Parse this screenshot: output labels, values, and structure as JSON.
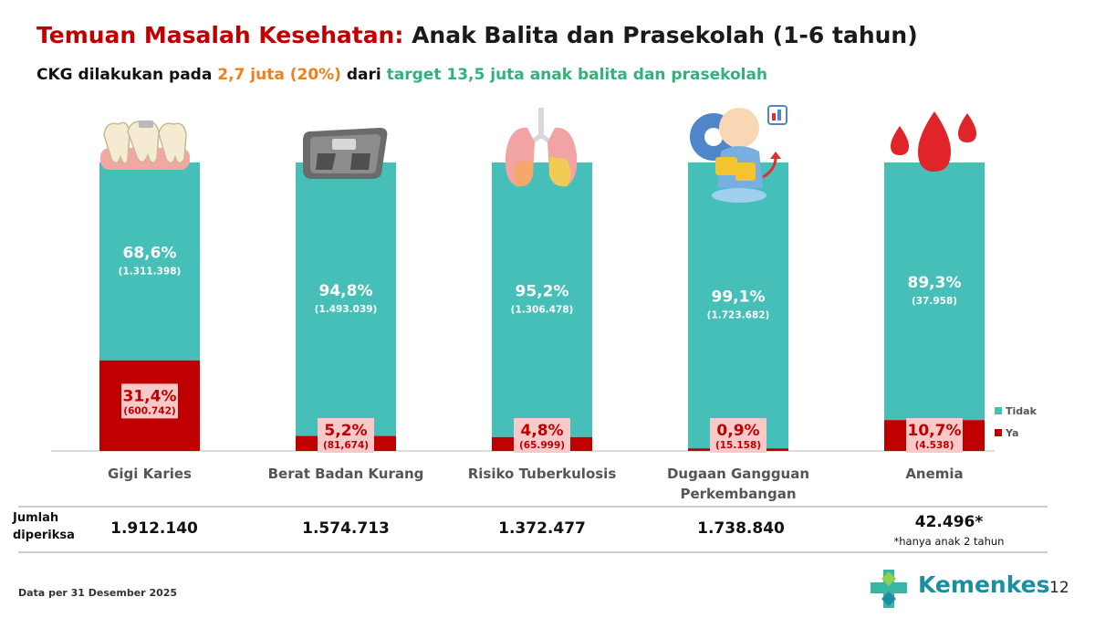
{
  "header": {
    "title_red": "Temuan Masalah Kesehatan:",
    "title_dark": "Anak Balita dan Prasekolah (1-6 tahun)",
    "subtitle_part1": "CKG dilakukan pada",
    "subtitle_highlight1": "2,7 juta (20%)",
    "subtitle_part2": "dari",
    "subtitle_highlight2": "target 13,5 juta anak balita dan prasekolah"
  },
  "chart_data": {
    "type": "bar",
    "stacked": true,
    "normalized_percent": true,
    "categories": [
      "Gigi Karies",
      "Berat Badan Kurang",
      "Risiko Tuberkulosis",
      "Dugaan Gangguan Perkembangan",
      "Anemia"
    ],
    "category_lines": [
      [
        "Gigi Karies"
      ],
      [
        "Berat Badan Kurang"
      ],
      [
        "Risiko Tuberkulosis"
      ],
      [
        "Dugaan Gangguan",
        "Perkembangan"
      ],
      [
        "Anemia"
      ]
    ],
    "series": [
      {
        "name": "Ya",
        "color": "#c00000",
        "values": [
          31.4,
          5.2,
          4.8,
          0.9,
          10.7
        ],
        "labels_pct": [
          "31,4%",
          "5,2%",
          "4,8%",
          "0,9%",
          "10,7%"
        ],
        "labels_count": [
          "(600.742)",
          "(81,674)",
          "(65.999)",
          "(15.158)",
          "(4.538)"
        ]
      },
      {
        "name": "Tidak",
        "color": "#45bfb8",
        "values": [
          68.6,
          94.8,
          95.2,
          99.1,
          89.3
        ],
        "labels_pct": [
          "68,6%",
          "94,8%",
          "95,2%",
          "99,1%",
          "89,3%"
        ],
        "labels_count": [
          "(1.311.398)",
          "(1.493.039)",
          "(1.306.478)",
          "(1.723.682)",
          "(37.958)"
        ]
      }
    ],
    "ylim": [
      0,
      100
    ],
    "legend_position": "right",
    "legend": [
      "Tidak",
      "Ya"
    ]
  },
  "summary": {
    "row_label_line1": "Jumlah",
    "row_label_line2": "diperiksa",
    "totals": [
      "1.912.140",
      "1.574.713",
      "1.372.477",
      "1.738.840",
      "42.496*"
    ],
    "anemia_note": "*hanya anak 2 tahun"
  },
  "footer": {
    "data_note": "Data per 31 Desember 2025",
    "logo_text": "Kemenkes",
    "page_number": "12"
  },
  "icons": [
    "teeth-icon",
    "scale-icon",
    "lungs-icon",
    "baby-development-icon",
    "blood-drops-icon",
    "kemenkes-logo-icon"
  ],
  "colors": {
    "tidak": "#45bfb8",
    "ya": "#c00000",
    "title_red": "#c00000",
    "highlight_orange": "#f07f1a",
    "highlight_green": "#2fb37a",
    "logo": "#1b8fa0"
  }
}
